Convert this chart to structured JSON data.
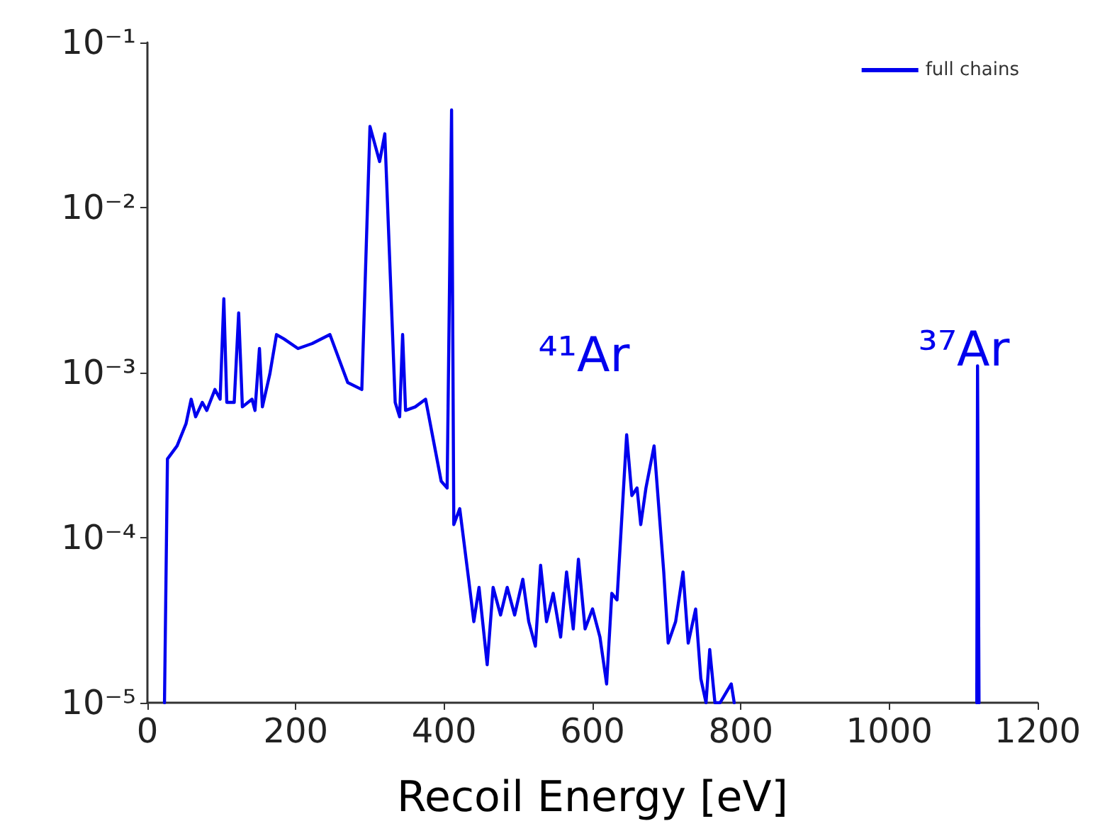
{
  "chart_data": {
    "type": "line",
    "xlabel": "Recoil Energy [eV]",
    "log": "y",
    "legend": "top right",
    "grid": false,
    "marker": "none",
    "line_style": "solid",
    "xlim": [
      0,
      1200
    ],
    "xticks": [
      0,
      200,
      400,
      600,
      800,
      1000,
      1200
    ],
    "ylim": [
      1e-05,
      0.1
    ],
    "yticks": [
      {
        "value": 1e-05,
        "label": "10⁻⁵"
      },
      {
        "value": 0.0001,
        "label": "10⁻⁴"
      },
      {
        "value": 0.001,
        "label": "10⁻³"
      },
      {
        "value": 0.01,
        "label": "10⁻²"
      },
      {
        "value": 0.1,
        "label": "10⁻¹"
      }
    ],
    "annotations": [
      "⁴¹Ar",
      "³⁷Ar"
    ],
    "series": [
      {
        "name": "full chains",
        "color": "#0000ee",
        "x": [
          23,
          27,
          40,
          52,
          59,
          65,
          74,
          80,
          91,
          98,
          103,
          107,
          117,
          123,
          128,
          141,
          145,
          151,
          155,
          165,
          174,
          184,
          203,
          222,
          246,
          270,
          289,
          300,
          313,
          320,
          334,
          340,
          344,
          348,
          361,
          375,
          385,
          396,
          404,
          410,
          413,
          421,
          433,
          440,
          447,
          458,
          466,
          476,
          485,
          495,
          506,
          514,
          523,
          530,
          538,
          547,
          557,
          565,
          574,
          581,
          590,
          600,
          610,
          619,
          626,
          633,
          646,
          653,
          660,
          665,
          672,
          683,
          696,
          702,
          712,
          722,
          729,
          739,
          746,
          753,
          758,
          765,
          772,
          787,
          791,
          950,
          1118,
          1119,
          1121
        ],
        "values": [
          1e-05,
          0.0003,
          0.00036,
          0.00049,
          0.00069,
          0.00054,
          0.00066,
          0.00059,
          0.00079,
          0.00069,
          0.0028,
          0.00066,
          0.00066,
          0.0023,
          0.00062,
          0.00069,
          0.00059,
          0.0014,
          0.00062,
          0.00098,
          0.0017,
          0.0016,
          0.0014,
          0.0015,
          0.0017,
          0.00087,
          0.00079,
          0.031,
          0.019,
          0.028,
          0.00066,
          0.00054,
          0.0017,
          0.00059,
          0.00062,
          0.00069,
          0.0004,
          0.00022,
          0.0002,
          0.039,
          0.00012,
          0.00015,
          5.6e-05,
          3.1e-05,
          5e-05,
          1.7e-05,
          5e-05,
          3.4e-05,
          5e-05,
          3.4e-05,
          5.6e-05,
          3.1e-05,
          2.2e-05,
          6.8e-05,
          3.1e-05,
          4.6e-05,
          2.5e-05,
          6.2e-05,
          2.8e-05,
          7.4e-05,
          2.8e-05,
          3.7e-05,
          2.5e-05,
          1.3e-05,
          4.6e-05,
          4.2e-05,
          0.00042,
          0.00018,
          0.0002,
          0.00012,
          0.0002,
          0.00036,
          6.2e-05,
          2.3e-05,
          3.1e-05,
          6.2e-05,
          2.3e-05,
          3.7e-05,
          1.4e-05,
          1e-05,
          2.1e-05,
          1e-05,
          1e-05,
          1.3e-05,
          1e-05,
          null,
          1e-05,
          0.0011,
          1e-05
        ]
      }
    ]
  }
}
